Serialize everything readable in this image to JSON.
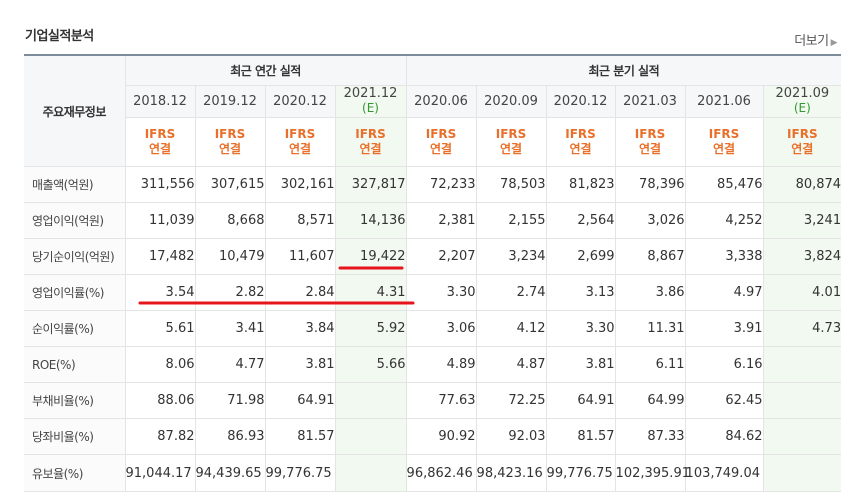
{
  "section_title": "기업실적분석",
  "more_label": "더보기",
  "header": {
    "label_col": "주요재무정보",
    "annual_group": "최근 연간 실적",
    "quarter_group": "최근 분기 실적",
    "annual_periods": [
      {
        "date": "2018.12",
        "est": ""
      },
      {
        "date": "2019.12",
        "est": ""
      },
      {
        "date": "2020.12",
        "est": ""
      },
      {
        "date": "2021.12",
        "est": "(E)"
      }
    ],
    "quarter_periods": [
      {
        "date": "2020.06",
        "est": ""
      },
      {
        "date": "2020.09",
        "est": ""
      },
      {
        "date": "2020.12",
        "est": ""
      },
      {
        "date": "2021.03",
        "est": ""
      },
      {
        "date": "2021.06",
        "est": ""
      },
      {
        "date": "2021.09",
        "est": "(E)"
      }
    ],
    "ifrs_line1": "IFRS",
    "ifrs_line2": "연결"
  },
  "rows": [
    {
      "label": "매출액(억원)",
      "values": [
        "311,556",
        "307,615",
        "302,161",
        "327,817",
        "72,233",
        "78,503",
        "81,823",
        "78,396",
        "85,476",
        "80,874"
      ]
    },
    {
      "label": "영업이익(억원)",
      "values": [
        "11,039",
        "8,668",
        "8,571",
        "14,136",
        "2,381",
        "2,155",
        "2,564",
        "3,026",
        "4,252",
        "3,241"
      ]
    },
    {
      "label": "당기순이익(억원)",
      "values": [
        "17,482",
        "10,479",
        "11,607",
        "19,422",
        "2,207",
        "3,234",
        "2,699",
        "8,867",
        "3,338",
        "3,824"
      ]
    },
    {
      "label": "영업이익률(%)",
      "values": [
        "3.54",
        "2.82",
        "2.84",
        "4.31",
        "3.30",
        "2.74",
        "3.13",
        "3.86",
        "4.97",
        "4.01"
      ]
    },
    {
      "label": "순이익률(%)",
      "values": [
        "5.61",
        "3.41",
        "3.84",
        "5.92",
        "3.06",
        "4.12",
        "3.30",
        "11.31",
        "3.91",
        "4.73"
      ]
    },
    {
      "label": "ROE(%)",
      "values": [
        "8.06",
        "4.77",
        "3.81",
        "5.66",
        "4.89",
        "4.87",
        "3.81",
        "6.11",
        "6.16",
        ""
      ]
    },
    {
      "label": "부채비율(%)",
      "values": [
        "88.06",
        "71.98",
        "64.91",
        "",
        "77.63",
        "72.25",
        "64.91",
        "64.99",
        "62.45",
        ""
      ]
    },
    {
      "label": "당좌비율(%)",
      "values": [
        "87.82",
        "86.93",
        "81.57",
        "",
        "90.92",
        "92.03",
        "81.57",
        "87.33",
        "84.62",
        ""
      ]
    },
    {
      "label": "유보율(%)",
      "values": [
        "91,044.17",
        "94,439.65",
        "99,776.75",
        "",
        "96,862.46",
        "98,423.16",
        "99,776.75",
        "102,395.91",
        "103,749.04",
        ""
      ]
    }
  ],
  "annotation_color": "#e8141c"
}
